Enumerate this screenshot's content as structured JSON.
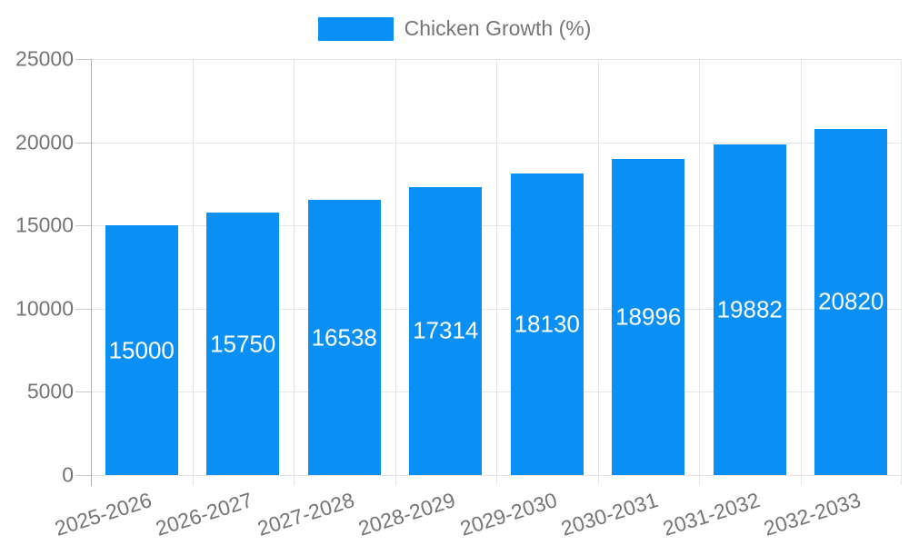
{
  "legend": {
    "position": "top-center"
  },
  "chart_data": {
    "type": "bar",
    "title": "",
    "categories": [
      "2025-2026",
      "2026-2027",
      "2027-2028",
      "2028-2029",
      "2029-2030",
      "2030-2031",
      "2031-2032",
      "2032-2033"
    ],
    "series": [
      {
        "name": "Chicken Growth (%)",
        "values": [
          15000,
          15750,
          16538,
          17314,
          18130,
          18996,
          19882,
          20820
        ]
      }
    ],
    "yticks": [
      0,
      5000,
      10000,
      15000,
      20000,
      25000
    ],
    "ylim": [
      0,
      25000
    ],
    "xlabel": "",
    "ylabel": "",
    "grid": true,
    "legend_position": "top",
    "value_labels": "inside-center",
    "bar_color": "#0a90f5",
    "bar_label_color": "#ffffff",
    "axis_text_color": "#757575",
    "gridline_color": "#e6e6e6",
    "axis_line_color": "#b0b0b0",
    "tick_stub_color": "#c9c9c9",
    "background_color": "#ffffff"
  }
}
